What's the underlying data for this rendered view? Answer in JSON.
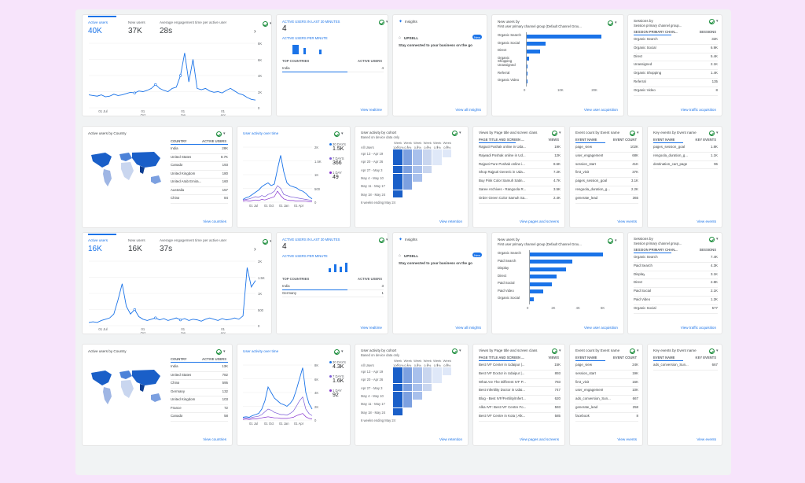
{
  "report1": {
    "overview": {
      "metric1": {
        "label": "Active users",
        "value": "40K"
      },
      "metric2": {
        "label": "New users",
        "value": "37K"
      },
      "metric3": {
        "label": "Average engagement time per active user",
        "value": "28s"
      },
      "y_ticks": [
        "8K",
        "6K",
        "4K",
        "2K",
        "0"
      ],
      "x_ticks": [
        "01 Jul",
        "01 Oct",
        "01 Jan",
        "01 Apr"
      ]
    },
    "realtime": {
      "title": "ACTIVE USERS IN LAST 30 MINUTES",
      "value": "4",
      "per_minute": "ACTIVE USERS PER MINUTE",
      "col1": "TOP COUNTRIES",
      "col2": "ACTIVE USERS",
      "rows": [
        {
          "c": "India",
          "v": "4"
        }
      ],
      "link": "View realtime"
    },
    "insights": {
      "title": "Insights",
      "badge": "New",
      "tag": "UPSELL",
      "body": "Stay connected to your business on the go",
      "link": "View all insights"
    },
    "new_users": {
      "title": "New users by",
      "subtitle": "First user primary channel group (Default Channel Grou...",
      "bars": [
        {
          "label": "Organic Search",
          "value": 24000
        },
        {
          "label": "Organic Social",
          "value": 6200
        },
        {
          "label": "Direct",
          "value": 4500
        },
        {
          "label": "Organic Shopping",
          "value": 900
        },
        {
          "label": "Unassigned",
          "value": 400
        },
        {
          "label": "Referral",
          "value": 300
        },
        {
          "label": "Organic Video",
          "value": 200
        }
      ],
      "x_ticks": [
        "0",
        "10K",
        "20K"
      ],
      "link": "View user acquisition"
    },
    "sessions": {
      "title": "Sessions by",
      "subtitle": "Session primary channel group...",
      "col1": "SESSION PRIMARY CHAN...",
      "col2": "SESSIONS",
      "rows": [
        {
          "c": "Organic Search",
          "v": "32K"
        },
        {
          "c": "Organic Social",
          "v": "6.9K"
        },
        {
          "c": "Direct",
          "v": "5.4K"
        },
        {
          "c": "Unassigned",
          "v": "2.1K"
        },
        {
          "c": "Organic Shopping",
          "v": "1.4K"
        },
        {
          "c": "Referral",
          "v": "135"
        },
        {
          "c": "Organic Video",
          "v": "8"
        }
      ],
      "link": "View traffic acquisition"
    },
    "country": {
      "title": "Active users by Country",
      "col1": "COUNTRY",
      "col2": "ACTIVE USERS",
      "rows": [
        {
          "c": "India",
          "v": "28K"
        },
        {
          "c": "United States",
          "v": "8.7K"
        },
        {
          "c": "Canada",
          "v": "193"
        },
        {
          "c": "United Kingdom",
          "v": "180"
        },
        {
          "c": "United Arab Emira...",
          "v": "160"
        },
        {
          "c": "Australia",
          "v": "157"
        },
        {
          "c": "China",
          "v": "84"
        }
      ],
      "link": "View countries"
    },
    "activity": {
      "title": "User activity over time",
      "legend": [
        {
          "label": "30 DAYS",
          "value": "1.5K"
        },
        {
          "label": "7 DAYS",
          "value": "366"
        },
        {
          "label": "1 DAY",
          "value": "49"
        }
      ],
      "y_ticks": [
        "2K",
        "1.5K",
        "1K",
        "500",
        "0"
      ],
      "x_ticks": [
        "01 Jul",
        "01 Oct",
        "01 Jan",
        "01 Apr"
      ]
    },
    "cohort": {
      "title": "User activity by cohort",
      "subtitle": "Based on device data only",
      "weeks": [
        "Week 0",
        "Week 1",
        "Week 2",
        "Week 3",
        "Week 4",
        "Week 5"
      ],
      "all_label": "All Users",
      "all_vals": [
        "100.0%",
        "0.3%",
        "0.2%",
        "0.0%",
        "0.1%",
        "0.0%"
      ],
      "rows": [
        "Apr 13 - Apr 19",
        "Apr 20 - Apr 26",
        "Apr 27 - May 3",
        "May 4 - May 10",
        "May 11 - May 17",
        "May 18 - May 24"
      ],
      "footer": "6 weeks ending May 24",
      "link": "View retention"
    },
    "pages": {
      "title": "Views by Page title and screen class",
      "col1": "PAGE TITLE AND SCREEN ...",
      "col2": "VIEWS",
      "rows": [
        {
          "c": "Rajputi Poshak online in Uda...",
          "v": "19K"
        },
        {
          "c": "Rajwadi Poshak online in Ud...",
          "v": "12K"
        },
        {
          "c": "Rajputi Pure Poshak online i...",
          "v": "8.6K"
        },
        {
          "c": "Shop Rajputi Generic in Uda...",
          "v": "7.2K"
        },
        {
          "c": "Buy Pink Color Samuh Satin...",
          "v": "4.7K"
        },
        {
          "c": "Saree Archives - Rangoola R...",
          "v": "3.5K"
        },
        {
          "c": "Order Green Color Samuh Sa...",
          "v": "2.4K"
        }
      ],
      "link": "View pages and screens"
    },
    "events": {
      "title": "Event count by Event name",
      "col1": "EVENT NAME",
      "col2": "EVENT COUNT",
      "rows": [
        {
          "c": "page_view",
          "v": "102K"
        },
        {
          "c": "user_engagement",
          "v": "68K"
        },
        {
          "c": "session_start",
          "v": "41K"
        },
        {
          "c": "first_visit",
          "v": "37K"
        },
        {
          "c": "pages_session_goal",
          "v": "3.1K"
        },
        {
          "c": "rengoola_duration_g...",
          "v": "2.2K"
        },
        {
          "c": "generate_lead",
          "v": "365"
        }
      ],
      "link": "View events"
    },
    "key_events": {
      "title": "Key events by Event name",
      "col1": "EVENT NAME",
      "col2": "KEY EVENTS",
      "rows": [
        {
          "c": "pages_session_goal",
          "v": "1.8K"
        },
        {
          "c": "rengoola_duration_g...",
          "v": "1.1K"
        },
        {
          "c": "destination_cart_page",
          "v": "96"
        }
      ],
      "link": "View events"
    }
  },
  "report2": {
    "overview": {
      "metric1": {
        "label": "Active users",
        "value": "16K"
      },
      "metric2": {
        "label": "New users",
        "value": "16K"
      },
      "metric3": {
        "label": "Average engagement time per active user",
        "value": "37s"
      },
      "y_ticks": [
        "2K",
        "1.5K",
        "1K",
        "500",
        "0"
      ],
      "x_ticks": [
        "01 Jul",
        "01 Oct",
        "01 Jan",
        "01 Apr"
      ]
    },
    "realtime": {
      "title": "ACTIVE USERS IN LAST 30 MINUTES",
      "value": "4",
      "per_minute": "ACTIVE USERS PER MINUTE",
      "col1": "TOP COUNTRIES",
      "col2": "ACTIVE USERS",
      "rows": [
        {
          "c": "India",
          "v": "3"
        },
        {
          "c": "Germany",
          "v": "1"
        }
      ],
      "link": "View realtime"
    },
    "insights": {
      "title": "Insights",
      "badge": "New",
      "tag": "UPSELL",
      "body": "Stay connected to your business on the go",
      "link": "View all insights"
    },
    "new_users": {
      "title": "New users by",
      "subtitle": "First user primary channel group (Default Channel Grou...",
      "bars": [
        {
          "label": "Organic Search",
          "value": 5800
        },
        {
          "label": "Paid Search",
          "value": 3400
        },
        {
          "label": "Display",
          "value": 2900
        },
        {
          "label": "Direct",
          "value": 2200
        },
        {
          "label": "Paid Social",
          "value": 1800
        },
        {
          "label": "Paid Video",
          "value": 1100
        },
        {
          "label": "Organic Social",
          "value": 400
        }
      ],
      "x_ticks": [
        "0",
        "2K",
        "4K",
        "6K"
      ],
      "link": "View user acquisition"
    },
    "sessions": {
      "title": "Sessions by",
      "subtitle": "Session primary channel group...",
      "col1": "SESSION PRIMARY CHAN...",
      "col2": "SESSIONS",
      "rows": [
        {
          "c": "Organic Search",
          "v": "7.4K"
        },
        {
          "c": "Paid Search",
          "v": "4.3K"
        },
        {
          "c": "Display",
          "v": "3.1K"
        },
        {
          "c": "Direct",
          "v": "2.8K"
        },
        {
          "c": "Paid Social",
          "v": "2.1K"
        },
        {
          "c": "Paid Video",
          "v": "1.2K"
        },
        {
          "c": "Organic Social",
          "v": "577"
        }
      ],
      "link": "View traffic acquisition"
    },
    "country": {
      "title": "Active users by Country",
      "col1": "COUNTRY",
      "col2": "ACTIVE USERS",
      "rows": [
        {
          "c": "India",
          "v": "13K"
        },
        {
          "c": "United States",
          "v": "782"
        },
        {
          "c": "China",
          "v": "595"
        },
        {
          "c": "Germany",
          "v": "132"
        },
        {
          "c": "United Kingdom",
          "v": "103"
        },
        {
          "c": "France",
          "v": "72"
        },
        {
          "c": "Canada",
          "v": "58"
        }
      ],
      "link": "View countries"
    },
    "activity": {
      "title": "User activity over time",
      "legend": [
        {
          "label": "30 DAYS",
          "value": "4.3K"
        },
        {
          "label": "7 DAYS",
          "value": "1.6K"
        },
        {
          "label": "1 DAY",
          "value": "92"
        }
      ],
      "y_ticks": [
        "8K",
        "6K",
        "4K",
        "2K",
        "0"
      ],
      "x_ticks": [
        "01 Jul",
        "01 Oct",
        "01 Jan",
        "01 Apr"
      ]
    },
    "cohort": {
      "title": "User activity by cohort",
      "subtitle": "Based on device data only",
      "weeks": [
        "Week 0",
        "Week 1",
        "Week 2",
        "Week 3",
        "Week 4",
        "Week 5"
      ],
      "all_label": "All Users",
      "all_vals": [
        "100.0%",
        "0.4%",
        "0.2%",
        "0.1%",
        "0.1%",
        "0.0%"
      ],
      "rows": [
        "Apr 13 - Apr 19",
        "Apr 20 - Apr 26",
        "Apr 27 - May 3",
        "May 4 - May 10",
        "May 11 - May 17",
        "May 18 - May 24"
      ],
      "footer": "6 weeks ending May 24",
      "link": "View retention"
    },
    "pages": {
      "title": "Views by Page title and screen class",
      "col1": "PAGE TITLE AND SCREEN ...",
      "col2": "VIEWS",
      "rows": [
        {
          "c": "Best IVF Center in Udaipur |...",
          "v": "15K"
        },
        {
          "c": "Best IVF Doctor in Udaipur |...",
          "v": "893"
        },
        {
          "c": "What Are The Different IVF P...",
          "v": "783"
        },
        {
          "c": "Best Infertility Doctor in Udai...",
          "v": "747"
        },
        {
          "c": "Blog - Best IVF/Fertility/Infert...",
          "v": "620"
        },
        {
          "c": "Alka IVF: Best IVF Centre Fo...",
          "v": "593"
        },
        {
          "c": "Best IVF Centre in Kota | Alk...",
          "v": "585"
        }
      ],
      "link": "View pages and screens"
    },
    "events": {
      "title": "Event count by Event name",
      "col1": "EVENT NAME",
      "col2": "EVENT COUNT",
      "rows": [
        {
          "c": "page_view",
          "v": "24K"
        },
        {
          "c": "session_start",
          "v": "19K"
        },
        {
          "c": "first_visit",
          "v": "16K"
        },
        {
          "c": "user_engagement",
          "v": "10K"
        },
        {
          "c": "ads_conversion_Sun...",
          "v": "667"
        },
        {
          "c": "generate_lead",
          "v": "258"
        },
        {
          "c": "facebook",
          "v": "8"
        }
      ],
      "link": "View events"
    },
    "key_events": {
      "title": "Key events by Event name",
      "col1": "EVENT NAME",
      "col2": "KEY EVENTS",
      "rows": [
        {
          "c": "ads_conversion_Sun...",
          "v": "667"
        }
      ],
      "link": "View events"
    }
  }
}
